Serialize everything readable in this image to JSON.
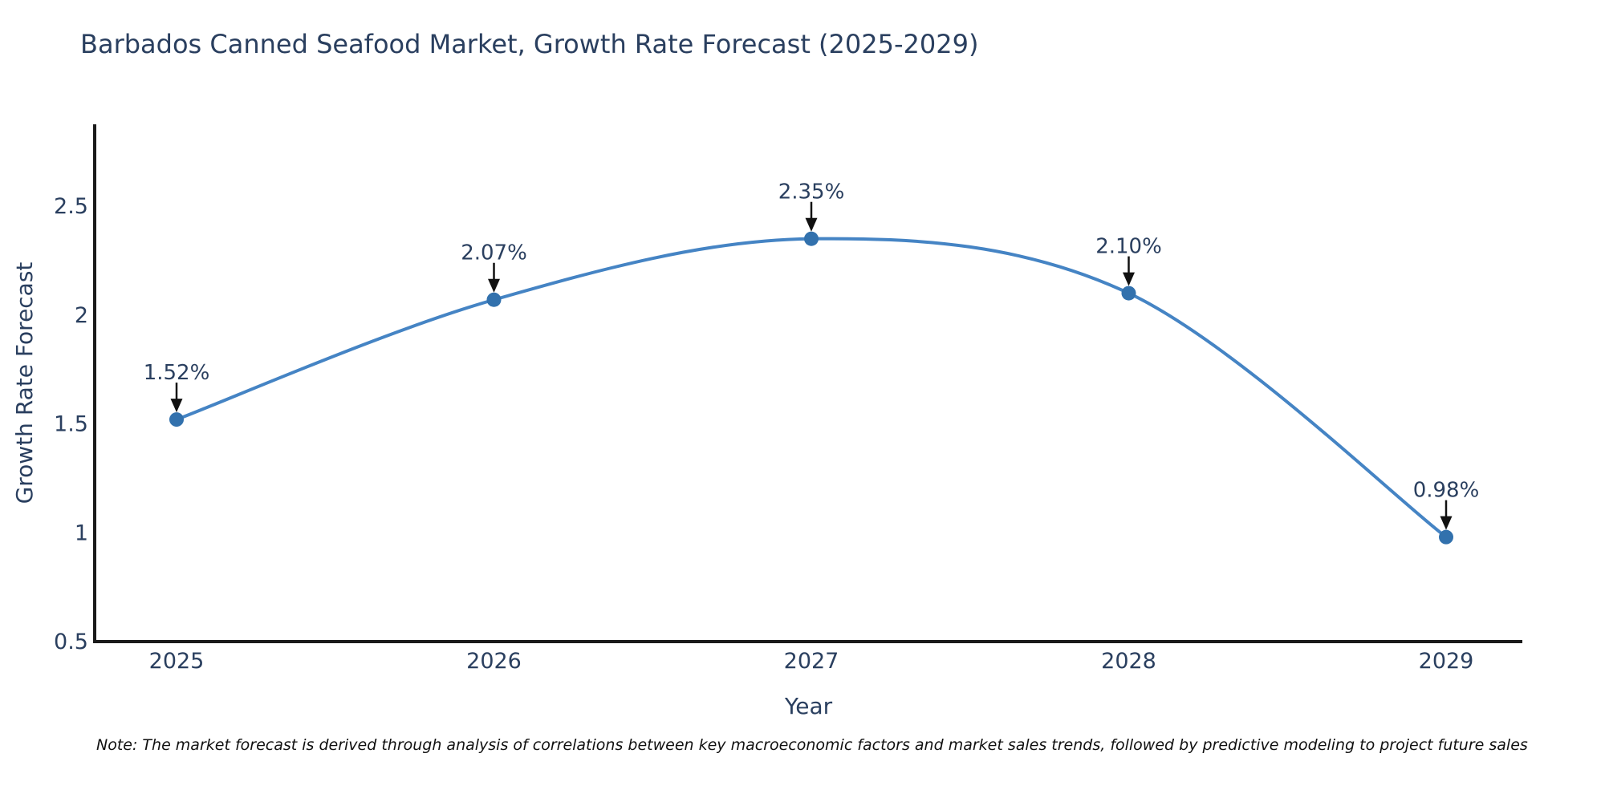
{
  "title": "Barbados Canned Seafood Market, Growth Rate Forecast (2025-2029)",
  "note": "Note: The market forecast is derived through analysis of correlations between key macroeconomic factors and market sales trends, followed by predictive modeling to project future sales",
  "chart_data": {
    "type": "line",
    "title": "Barbados Canned Seafood Market, Growth Rate Forecast (2025-2029)",
    "x": [
      "2025",
      "2026",
      "2027",
      "2028",
      "2029"
    ],
    "series": [
      {
        "name": "Growth Rate Forecast",
        "values": [
          1.52,
          2.07,
          2.35,
          2.1,
          0.98
        ]
      }
    ],
    "point_labels": [
      "1.52%",
      "2.07%",
      "2.35%",
      "2.10%",
      "0.98%"
    ],
    "xlabel": "Year",
    "ylabel": "Growth Rate Forecast",
    "yticks": [
      "0.5",
      "1",
      "1.5",
      "2",
      "2.5"
    ],
    "ytick_values": [
      0.5,
      1,
      1.5,
      2,
      2.5
    ],
    "ylim": [
      0.5,
      2.88
    ],
    "grid": false,
    "legend": "none",
    "line_shape": "spline",
    "annotation_style": "label-with-down-arrow",
    "colors": {
      "line": "#4584c4",
      "marker": "#3271ad",
      "axis": "#1a1a1a",
      "arrow": "#111111",
      "text": "#2a3f5f"
    }
  }
}
